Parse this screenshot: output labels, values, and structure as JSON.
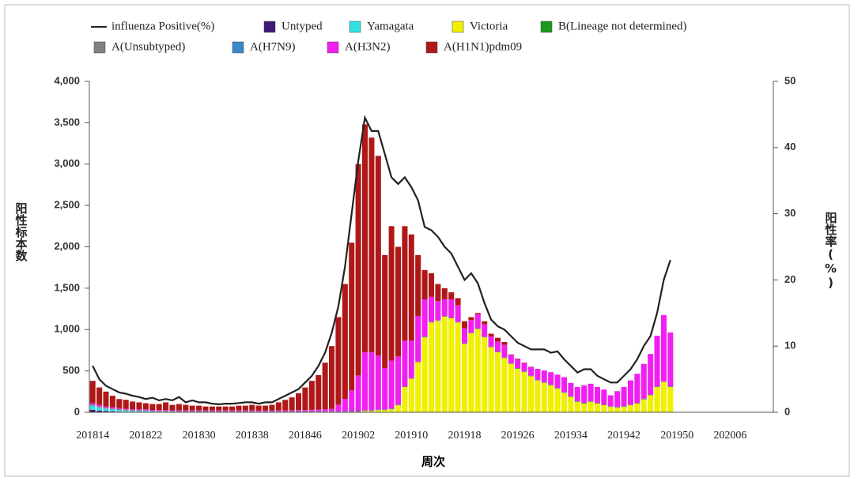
{
  "chart_data": {
    "type": "bar",
    "x_label": "周次",
    "y_label": "阳性标本数",
    "y2_label": "阳性率(%)",
    "categories": [
      "201814",
      null,
      null,
      null,
      null,
      null,
      null,
      null,
      "201822",
      null,
      null,
      null,
      null,
      null,
      null,
      null,
      "201830",
      null,
      null,
      null,
      null,
      null,
      null,
      null,
      "201838",
      null,
      null,
      null,
      null,
      null,
      null,
      null,
      "201846",
      null,
      null,
      null,
      null,
      null,
      null,
      null,
      "201902",
      null,
      null,
      null,
      null,
      null,
      null,
      null,
      "201910",
      null,
      null,
      null,
      null,
      null,
      null,
      null,
      "201918",
      null,
      null,
      null,
      null,
      null,
      null,
      null,
      "201926",
      null,
      null,
      null,
      null,
      null,
      null,
      null,
      "201934",
      null,
      null,
      null,
      null,
      null,
      null,
      null,
      "201942",
      null,
      null,
      null,
      null,
      null,
      null,
      null,
      "201950",
      null,
      null,
      null,
      null,
      null,
      null,
      null,
      "202006",
      null,
      null,
      null,
      null,
      null,
      null
    ],
    "ylim": [
      0,
      4000
    ],
    "yticks": [
      0,
      500,
      {
        "value": 1000,
        "label": "1,000"
      },
      {
        "value": 1500,
        "label": "1,500"
      },
      {
        "value": 2000,
        "label": "2,000"
      },
      {
        "value": 2500,
        "label": "2,500"
      },
      {
        "value": 3000,
        "label": "3,000"
      },
      {
        "value": 3500,
        "label": "3,500"
      },
      {
        "value": 4000,
        "label": "4,000"
      }
    ],
    "y2lim": [
      0,
      50
    ],
    "y2ticks": [
      0,
      10,
      20,
      30,
      40,
      50
    ],
    "stacked": true,
    "grid": false,
    "series": [
      {
        "name": "influenza Positive(%)",
        "type": "line",
        "axis": "y2",
        "color": "#222222",
        "values": [
          7,
          5,
          4,
          3.5,
          3,
          2.8,
          2.5,
          2.3,
          2,
          2.2,
          1.8,
          2,
          1.8,
          2.3,
          1.5,
          1.8,
          1.5,
          1.5,
          1.3,
          1.2,
          1.3,
          1.3,
          1.4,
          1.5,
          1.5,
          1.3,
          1.5,
          1.5,
          2,
          2.5,
          3,
          3.5,
          4.5,
          5.5,
          7,
          9,
          12,
          16,
          22,
          30,
          38,
          44.5,
          42.5,
          42.5,
          39,
          35.5,
          34.5,
          35.5,
          34,
          32,
          28,
          27.5,
          26.5,
          25,
          24,
          22,
          20,
          21,
          19.5,
          16.5,
          14,
          13,
          12.5,
          11.5,
          10.5,
          10,
          9.5,
          9.5,
          9.5,
          9,
          9.2,
          8,
          7,
          6,
          6.5,
          6.5,
          5.5,
          5,
          4.5,
          4.5,
          5.5,
          6.5,
          8,
          10,
          11.5,
          15,
          20,
          23,
          null,
          null,
          null,
          null,
          null,
          null,
          null,
          null,
          null,
          null,
          null,
          null,
          null,
          null,
          null
        ]
      },
      {
        "name": "Untyped",
        "color": "#3b1a78",
        "values": [
          30,
          20,
          15,
          10,
          8,
          6,
          5,
          5,
          5,
          0,
          0,
          0,
          0,
          0,
          0,
          0,
          0,
          0,
          0,
          0,
          0,
          0,
          0,
          0,
          0,
          0,
          0,
          0,
          0,
          0,
          0,
          0,
          0,
          0,
          0,
          0,
          0,
          0,
          0,
          0,
          0,
          0,
          0,
          0,
          0,
          0,
          0,
          0,
          0,
          0,
          0,
          0,
          0,
          0,
          0,
          0,
          0,
          0,
          0,
          0,
          0,
          0,
          0,
          0,
          0,
          0,
          0,
          0,
          0,
          0,
          0,
          0,
          0,
          0,
          0,
          0,
          0,
          0,
          0,
          0,
          0,
          0,
          0,
          0,
          0,
          0,
          0,
          0,
          null,
          null,
          null,
          null,
          null,
          null,
          null,
          null,
          null,
          null,
          null,
          null,
          null,
          null,
          null
        ]
      },
      {
        "name": "Yamagata",
        "color": "#33e0e0",
        "values": [
          50,
          40,
          30,
          25,
          20,
          15,
          12,
          10,
          10,
          8,
          8,
          8,
          6,
          5,
          5,
          5,
          5,
          4,
          4,
          3,
          3,
          3,
          3,
          3,
          3,
          2,
          2,
          2,
          2,
          2,
          2,
          2,
          2,
          2,
          2,
          2,
          2,
          2,
          2,
          5,
          5,
          5,
          5,
          5,
          5,
          5,
          5,
          5,
          5,
          5,
          5,
          5,
          5,
          5,
          5,
          5,
          5,
          5,
          5,
          5,
          5,
          5,
          5,
          5,
          5,
          5,
          5,
          5,
          5,
          5,
          5,
          5,
          5,
          5,
          5,
          5,
          5,
          5,
          5,
          5,
          5,
          5,
          5,
          5,
          5,
          5,
          5,
          5,
          null,
          null,
          null,
          null,
          null,
          null,
          null,
          null,
          null,
          null,
          null,
          null,
          null,
          null,
          null
        ]
      },
      {
        "name": "Victoria",
        "color": "#f0f000",
        "values": [
          0,
          0,
          0,
          0,
          0,
          0,
          0,
          0,
          0,
          0,
          0,
          0,
          0,
          0,
          0,
          0,
          0,
          0,
          0,
          0,
          0,
          0,
          0,
          0,
          0,
          0,
          0,
          0,
          0,
          0,
          0,
          0,
          0,
          0,
          0,
          0,
          0,
          0,
          0,
          0,
          0,
          10,
          10,
          20,
          20,
          30,
          80,
          300,
          400,
          600,
          900,
          1080,
          1100,
          1150,
          1130,
          1080,
          820,
          950,
          1000,
          900,
          780,
          720,
          650,
          580,
          520,
          480,
          430,
          380,
          350,
          320,
          280,
          230,
          180,
          120,
          100,
          120,
          100,
          80,
          60,
          50,
          60,
          80,
          100,
          150,
          200,
          300,
          360,
          300,
          null,
          null,
          null,
          null,
          null,
          null,
          null,
          null,
          null,
          null,
          null,
          null,
          null,
          null,
          null
        ]
      },
      {
        "name": "B(Lineage not determined)",
        "color": "#1a9a1a",
        "values": [
          0,
          0,
          0,
          0,
          0,
          0,
          0,
          0,
          0,
          0,
          0,
          0,
          0,
          0,
          0,
          0,
          0,
          0,
          0,
          0,
          0,
          0,
          0,
          0,
          0,
          0,
          0,
          0,
          0,
          0,
          0,
          0,
          0,
          0,
          0,
          0,
          0,
          0,
          0,
          0,
          0,
          0,
          0,
          0,
          0,
          0,
          0,
          0,
          0,
          0,
          0,
          0,
          0,
          0,
          0,
          0,
          0,
          0,
          0,
          0,
          0,
          0,
          0,
          0,
          0,
          0,
          0,
          0,
          0,
          0,
          0,
          0,
          0,
          0,
          0,
          0,
          0,
          0,
          0,
          0,
          0,
          0,
          0,
          0,
          0,
          0,
          0,
          0,
          null,
          null,
          null,
          null,
          null,
          null,
          null,
          null,
          null,
          null,
          null,
          null,
          null,
          null,
          null
        ]
      },
      {
        "name": "A(Unsubtyped)",
        "color": "#808080",
        "values": [
          10,
          10,
          10,
          10,
          10,
          10,
          10,
          10,
          10,
          10,
          10,
          10,
          10,
          10,
          10,
          10,
          10,
          10,
          10,
          10,
          10,
          10,
          10,
          10,
          10,
          10,
          10,
          10,
          10,
          10,
          10,
          10,
          10,
          10,
          10,
          10,
          10,
          10,
          10,
          10,
          10,
          10,
          10,
          10,
          10,
          10,
          10,
          10,
          10,
          10,
          10,
          10,
          10,
          10,
          10,
          10,
          10,
          10,
          10,
          10,
          10,
          10,
          10,
          10,
          10,
          10,
          10,
          10,
          10,
          10,
          10,
          10,
          10,
          10,
          10,
          10,
          10,
          10,
          10,
          10,
          10,
          10,
          10,
          10,
          10,
          10,
          10,
          10,
          null,
          null,
          null,
          null,
          null,
          null,
          null,
          null,
          null,
          null,
          null,
          null,
          null,
          null,
          null
        ]
      },
      {
        "name": "A(H7N9)",
        "color": "#3a88c8",
        "values": [
          0,
          0,
          0,
          0,
          0,
          0,
          0,
          0,
          0,
          0,
          0,
          0,
          0,
          0,
          0,
          0,
          0,
          0,
          0,
          0,
          0,
          0,
          0,
          0,
          0,
          0,
          0,
          0,
          0,
          0,
          0,
          0,
          0,
          0,
          0,
          0,
          0,
          0,
          0,
          0,
          0,
          0,
          0,
          0,
          0,
          0,
          0,
          0,
          0,
          0,
          0,
          0,
          0,
          0,
          0,
          0,
          0,
          0,
          0,
          0,
          0,
          0,
          0,
          0,
          0,
          0,
          0,
          0,
          0,
          0,
          0,
          0,
          0,
          0,
          0,
          0,
          0,
          0,
          0,
          0,
          0,
          0,
          0,
          0,
          0,
          0,
          0,
          0,
          null,
          null,
          null,
          null,
          null,
          null,
          null,
          null,
          null,
          null,
          null,
          null,
          null,
          null,
          null
        ]
      },
      {
        "name": "A(H3N2)",
        "color": "#f020f0",
        "values": [
          20,
          20,
          15,
          15,
          12,
          10,
          10,
          10,
          10,
          10,
          10,
          10,
          8,
          8,
          8,
          8,
          8,
          8,
          8,
          8,
          8,
          8,
          8,
          8,
          8,
          8,
          8,
          8,
          10,
          10,
          10,
          15,
          15,
          20,
          20,
          25,
          30,
          80,
          150,
          250,
          430,
          700,
          700,
          650,
          500,
          580,
          580,
          550,
          450,
          550,
          450,
          300,
          230,
          200,
          220,
          200,
          180,
          150,
          170,
          150,
          120,
          120,
          150,
          100,
          110,
          100,
          100,
          130,
          140,
          150,
          160,
          180,
          160,
          170,
          210,
          210,
          190,
          180,
          130,
          190,
          230,
          290,
          350,
          420,
          490,
          610,
          800,
          650,
          null,
          null,
          null,
          null,
          null,
          null,
          null,
          null,
          null,
          null,
          null,
          null,
          null,
          null,
          null
        ]
      },
      {
        "name": "A(H1N1)pdm09",
        "color": "#b01818",
        "values": [
          270,
          210,
          180,
          140,
          110,
          110,
          93,
          85,
          75,
          72,
          72,
          92,
          66,
          77,
          67,
          57,
          57,
          48,
          48,
          49,
          49,
          49,
          59,
          59,
          69,
          60,
          60,
          70,
          98,
          128,
          158,
          203,
          273,
          348,
          418,
          563,
          758,
          1058,
          1388,
          1785,
          2555,
          2755,
          2595,
          2415,
          1365,
          1625,
          1325,
          1385,
          1285,
          735,
          355,
          285,
          205,
          135,
          85,
          85,
          85,
          35,
          15,
          35,
          35,
          45,
          35,
          5,
          5,
          5,
          5,
          0,
          0,
          0,
          0,
          0,
          0,
          0,
          0,
          0,
          0,
          0,
          0,
          0,
          0,
          0,
          0,
          0,
          0,
          0,
          0,
          0,
          null,
          null,
          null,
          null,
          null,
          null,
          null,
          null,
          null,
          null,
          null,
          null,
          null,
          null,
          null
        ]
      }
    ]
  }
}
